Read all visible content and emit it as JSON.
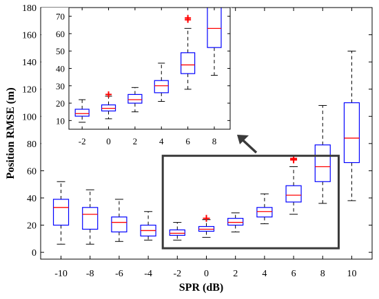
{
  "chart_data": {
    "type": "box",
    "xlabel": "SPR (dB)",
    "ylabel": "Position RMSE (m)",
    "xlim": [
      -11.4,
      11.4
    ],
    "ylim": [
      -5,
      180
    ],
    "yticks": [
      0,
      20,
      40,
      60,
      80,
      100,
      120,
      140,
      160,
      180
    ],
    "categories": [
      -10,
      -8,
      -6,
      -4,
      -2,
      0,
      2,
      4,
      6,
      8,
      10
    ],
    "boxes": [
      {
        "x": -10,
        "whisker_low": 6,
        "q1": 20,
        "median": 33,
        "q3": 39,
        "whisker_high": 52,
        "outliers": []
      },
      {
        "x": -8,
        "whisker_low": 6,
        "q1": 17,
        "median": 28,
        "q3": 33,
        "whisker_high": 46,
        "outliers": []
      },
      {
        "x": -6,
        "whisker_low": 8,
        "q1": 15,
        "median": 22,
        "q3": 26,
        "whisker_high": 39,
        "outliers": []
      },
      {
        "x": -4,
        "whisker_low": 9,
        "q1": 12,
        "median": 16,
        "q3": 20,
        "whisker_high": 30,
        "outliers": []
      },
      {
        "x": -2,
        "whisker_low": 9,
        "q1": 12.5,
        "median": 14,
        "q3": 16.5,
        "whisker_high": 22,
        "outliers": []
      },
      {
        "x": 0,
        "whisker_low": 11,
        "q1": 15.5,
        "median": 17,
        "q3": 19,
        "whisker_high": 24,
        "outliers": [
          25
        ]
      },
      {
        "x": 2,
        "whisker_low": 15,
        "q1": 20,
        "median": 22,
        "q3": 25,
        "whisker_high": 29,
        "outliers": []
      },
      {
        "x": 4,
        "whisker_low": 21,
        "q1": 26,
        "median": 30,
        "q3": 33,
        "whisker_high": 43,
        "outliers": []
      },
      {
        "x": 6,
        "whisker_low": 28,
        "q1": 37,
        "median": 42,
        "q3": 49,
        "whisker_high": 63,
        "outliers": [
          68,
          69
        ]
      },
      {
        "x": 8,
        "whisker_low": 36,
        "q1": 52,
        "median": 63,
        "q3": 79,
        "whisker_high": 108,
        "outliers": []
      },
      {
        "x": 10,
        "whisker_low": 38,
        "q1": 66,
        "median": 84,
        "q3": 110,
        "whisker_high": 148,
        "outliers": []
      }
    ],
    "inset": {
      "xlim": [
        -3,
        9.2
      ],
      "ylim": [
        5,
        75
      ],
      "yticks": [
        10,
        20,
        30,
        40,
        50,
        60,
        70
      ],
      "categories": [
        -2,
        0,
        2,
        4,
        6,
        8
      ]
    },
    "colors": {
      "box": "#0000ff",
      "median": "#ff0000",
      "outlier": "#ff0000",
      "whisker": "#000000",
      "highlight_box": "#3a3a3a",
      "arrow": "#3a3a3a"
    }
  }
}
